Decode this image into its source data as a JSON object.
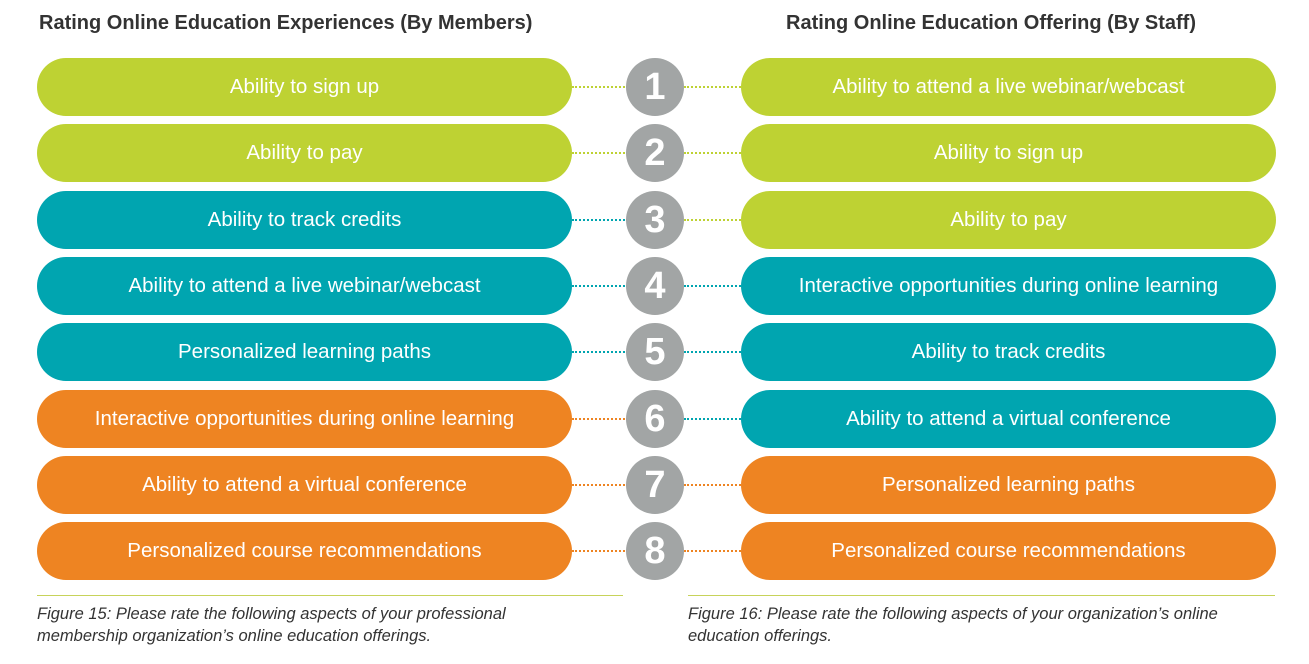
{
  "left": {
    "title": "Rating Online Education Experiences (By Members)",
    "items": [
      {
        "label": "Ability to sign up",
        "color": "#bed233"
      },
      {
        "label": "Ability to pay",
        "color": "#bed233"
      },
      {
        "label": "Ability to track credits",
        "color": "#00a5b0"
      },
      {
        "label": "Ability to attend a live webinar/webcast",
        "color": "#00a5b0"
      },
      {
        "label": "Personalized learning paths",
        "color": "#00a5b0"
      },
      {
        "label": "Interactive opportunities during online learning",
        "color": "#ee8422"
      },
      {
        "label": "Ability to attend a virtual conference",
        "color": "#ee8422"
      },
      {
        "label": "Personalized course recommendations",
        "color": "#ee8422"
      }
    ],
    "caption_line1": "Figure 15: Please rate the following aspects of your professional",
    "caption_line2": "membership organization’s online education offerings."
  },
  "right": {
    "title": "Rating Online Education Offering (By Staff)",
    "items": [
      {
        "label": "Ability to attend a live webinar/webcast",
        "color": "#bed233"
      },
      {
        "label": "Ability to sign up",
        "color": "#bed233"
      },
      {
        "label": "Ability to pay",
        "color": "#bed233"
      },
      {
        "label": "Interactive opportunities during online learning",
        "color": "#00a5b0"
      },
      {
        "label": "Ability to track credits",
        "color": "#00a5b0"
      },
      {
        "label": "Ability to attend a virtual conference",
        "color": "#00a5b0"
      },
      {
        "label": "Personalized learning paths",
        "color": "#ee8422"
      },
      {
        "label": "Personalized course recommendations",
        "color": "#ee8422"
      }
    ],
    "caption_line1": "Figure 16: Please rate the following aspects of your organization’s online",
    "caption_line2": "education offerings."
  },
  "ranks": [
    "1",
    "2",
    "3",
    "4",
    "5",
    "6",
    "7",
    "8"
  ],
  "colors": {
    "green": "#bed233",
    "teal": "#00a5b0",
    "orange": "#ee8422",
    "rank_circle": "#a2a5a5",
    "text_dark": "#333333",
    "rule": "#c7d35a"
  }
}
